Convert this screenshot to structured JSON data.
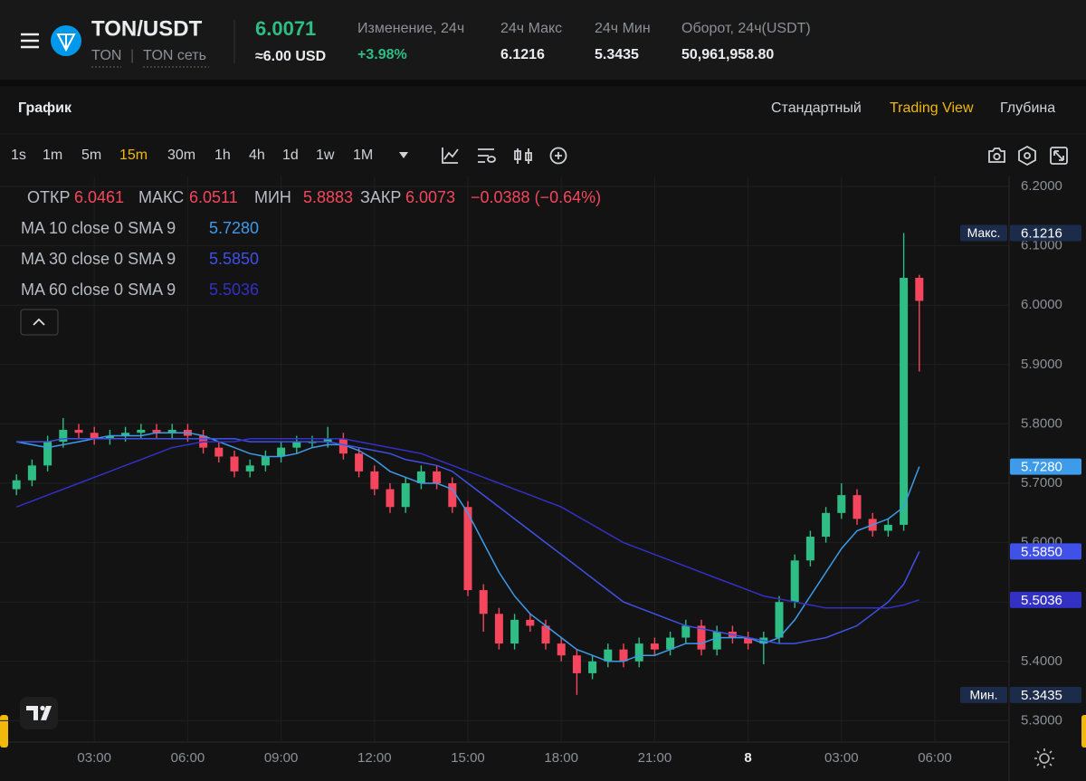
{
  "header": {
    "pair": "TON/USDT",
    "base": "TON",
    "network": "TON сеть",
    "price": "6.0071",
    "price_usd": "≈6.00 USD",
    "stats": [
      {
        "label": "Изменение, 24ч",
        "value": "+3.98%"
      },
      {
        "label": "24ч Макс",
        "value": "6.1216"
      },
      {
        "label": "24ч Мин",
        "value": "5.3435"
      },
      {
        "label": "Оборот, 24ч(USDT)",
        "value": "50,961,958.80"
      }
    ]
  },
  "tabs": {
    "title": "График",
    "views": [
      "Стандартный",
      "Trading View",
      "Глубина"
    ],
    "active_view": 1
  },
  "toolbar": {
    "intervals": [
      "1s",
      "1m",
      "5m",
      "15m",
      "30m",
      "1h",
      "4h",
      "1d",
      "1w",
      "1M"
    ],
    "active_interval": 3
  },
  "chart_data": {
    "type": "candlestick",
    "legend": {
      "items": [
        {
          "label": "ОТКР",
          "value": "6.0461"
        },
        {
          "label": "МАКС",
          "value": "6.0511"
        },
        {
          "label": "МИН",
          "value": "5.8883"
        },
        {
          "label": "ЗАКР",
          "value": "6.0073"
        }
      ],
      "change": "−0.0388 (−0.64%)"
    },
    "open": [
      5.69,
      5.705,
      5.73,
      5.77,
      5.79,
      5.785,
      5.775,
      5.78,
      5.785,
      5.79,
      5.785,
      5.79,
      5.78,
      5.76,
      5.745,
      5.72,
      5.73,
      5.745,
      5.76,
      5.77,
      5.77,
      5.775,
      5.75,
      5.72,
      5.69,
      5.66,
      5.7,
      5.72,
      5.7,
      5.66,
      5.52,
      5.48,
      5.43,
      5.47,
      5.46,
      5.43,
      5.41,
      5.38,
      5.4,
      5.42,
      5.4,
      5.43,
      5.42,
      5.44,
      5.46,
      5.42,
      5.45,
      5.44,
      5.43,
      5.44,
      5.5,
      5.57,
      5.61,
      5.65,
      5.68,
      5.64,
      5.62,
      5.63,
      6.0461
    ],
    "high": [
      5.715,
      5.74,
      5.78,
      5.81,
      5.8,
      5.795,
      5.79,
      5.795,
      5.8,
      5.8,
      5.8,
      5.8,
      5.79,
      5.77,
      5.755,
      5.74,
      5.755,
      5.77,
      5.78,
      5.78,
      5.795,
      5.785,
      5.76,
      5.73,
      5.7,
      5.71,
      5.73,
      5.73,
      5.71,
      5.67,
      5.53,
      5.49,
      5.48,
      5.48,
      5.47,
      5.44,
      5.42,
      5.41,
      5.43,
      5.43,
      5.44,
      5.44,
      5.45,
      5.47,
      5.47,
      5.46,
      5.46,
      5.45,
      5.45,
      5.51,
      5.58,
      5.62,
      5.66,
      5.7,
      5.69,
      5.65,
      5.64,
      6.1216,
      6.0511
    ],
    "low": [
      5.68,
      5.695,
      5.72,
      5.76,
      5.775,
      5.765,
      5.765,
      5.77,
      5.775,
      5.775,
      5.775,
      5.77,
      5.75,
      5.735,
      5.71,
      5.71,
      5.72,
      5.735,
      5.75,
      5.76,
      5.76,
      5.74,
      5.71,
      5.68,
      5.65,
      5.65,
      5.69,
      5.69,
      5.65,
      5.51,
      5.45,
      5.42,
      5.42,
      5.45,
      5.42,
      5.4,
      5.3435,
      5.37,
      5.39,
      5.39,
      5.39,
      5.41,
      5.41,
      5.43,
      5.41,
      5.41,
      5.43,
      5.42,
      5.395,
      5.43,
      5.49,
      5.56,
      5.6,
      5.64,
      5.63,
      5.61,
      5.61,
      5.62,
      5.8883
    ],
    "close": [
      5.705,
      5.73,
      5.77,
      5.79,
      5.785,
      5.775,
      5.78,
      5.785,
      5.79,
      5.785,
      5.79,
      5.78,
      5.76,
      5.745,
      5.72,
      5.73,
      5.745,
      5.76,
      5.77,
      5.77,
      5.775,
      5.75,
      5.72,
      5.69,
      5.66,
      5.7,
      5.72,
      5.7,
      5.66,
      5.52,
      5.48,
      5.43,
      5.47,
      5.46,
      5.43,
      5.41,
      5.38,
      5.4,
      5.42,
      5.4,
      5.43,
      5.42,
      5.44,
      5.46,
      5.42,
      5.45,
      5.44,
      5.43,
      5.44,
      5.5,
      5.57,
      5.61,
      5.65,
      5.68,
      5.64,
      5.62,
      5.63,
      6.0461,
      6.0073
    ],
    "up_color": "#2ebd85",
    "down_color": "#f6465d",
    "series": [
      {
        "name": "MA 10 close 0 SMA 9",
        "value_label": "5.7280",
        "color": "#3d9be9",
        "values": [
          5.77,
          5.765,
          5.76,
          5.765,
          5.77,
          5.775,
          5.78,
          5.78,
          5.78,
          5.785,
          5.785,
          5.785,
          5.78,
          5.77,
          5.76,
          5.75,
          5.745,
          5.745,
          5.75,
          5.76,
          5.765,
          5.765,
          5.755,
          5.74,
          5.72,
          5.71,
          5.7,
          5.7,
          5.69,
          5.65,
          5.6,
          5.55,
          5.51,
          5.48,
          5.46,
          5.44,
          5.42,
          5.41,
          5.4,
          5.4,
          5.41,
          5.41,
          5.42,
          5.43,
          5.43,
          5.44,
          5.44,
          5.44,
          5.43,
          5.44,
          5.47,
          5.51,
          5.55,
          5.59,
          5.62,
          5.63,
          5.64,
          5.66,
          5.728
        ]
      },
      {
        "name": "MA 30 close 0 SMA 9",
        "value_label": "5.5850",
        "color": "#3f51e6",
        "values": [
          5.77,
          5.77,
          5.77,
          5.775,
          5.775,
          5.775,
          5.775,
          5.775,
          5.775,
          5.775,
          5.775,
          5.775,
          5.775,
          5.775,
          5.775,
          5.77,
          5.77,
          5.77,
          5.77,
          5.77,
          5.77,
          5.765,
          5.76,
          5.755,
          5.75,
          5.74,
          5.735,
          5.73,
          5.72,
          5.7,
          5.68,
          5.66,
          5.64,
          5.62,
          5.6,
          5.58,
          5.56,
          5.54,
          5.52,
          5.5,
          5.49,
          5.48,
          5.47,
          5.46,
          5.455,
          5.45,
          5.445,
          5.44,
          5.435,
          5.43,
          5.43,
          5.435,
          5.44,
          5.45,
          5.46,
          5.48,
          5.5,
          5.53,
          5.585
        ]
      },
      {
        "name": "MA 60 close 0 SMA 9",
        "value_label": "5.5036",
        "color": "#3330c4",
        "values": [
          5.66,
          5.67,
          5.68,
          5.69,
          5.7,
          5.71,
          5.72,
          5.73,
          5.74,
          5.75,
          5.76,
          5.765,
          5.77,
          5.77,
          5.77,
          5.775,
          5.775,
          5.775,
          5.775,
          5.775,
          5.775,
          5.775,
          5.77,
          5.765,
          5.76,
          5.755,
          5.75,
          5.74,
          5.73,
          5.72,
          5.71,
          5.7,
          5.69,
          5.68,
          5.67,
          5.66,
          5.645,
          5.63,
          5.615,
          5.6,
          5.59,
          5.58,
          5.57,
          5.56,
          5.55,
          5.54,
          5.53,
          5.52,
          5.51,
          5.505,
          5.5,
          5.495,
          5.49,
          5.49,
          5.49,
          5.49,
          5.49,
          5.495,
          5.5036
        ]
      }
    ],
    "price_tags": [
      {
        "name": "Макс.",
        "value": 6.1216,
        "label": "6.1216"
      },
      {
        "value": 5.728,
        "label": "5.7280",
        "color": "#3d9be9"
      },
      {
        "value": 5.585,
        "label": "5.5850",
        "color": "#3f51e6"
      },
      {
        "value": 5.5036,
        "label": "5.5036",
        "color": "#3330c4"
      },
      {
        "name": "Мин.",
        "value": 5.3435,
        "label": "5.3435"
      }
    ],
    "ylim": [
      5.264,
      6.2168
    ],
    "yticks": [
      {
        "value": 5.3,
        "label": "5.3000"
      },
      {
        "value": 5.4,
        "label": "5.4000"
      },
      {
        "value": 5.5,
        "label": "5.5000"
      },
      {
        "value": 5.6,
        "label": "5.6000"
      },
      {
        "value": 5.7,
        "label": "5.7000"
      },
      {
        "value": 5.8,
        "label": "5.8000"
      },
      {
        "value": 5.9,
        "label": "5.9000"
      },
      {
        "value": 6.0,
        "label": "6.0000"
      },
      {
        "value": 6.1,
        "label": "6.1000"
      },
      {
        "value": 6.2,
        "label": "6.2000"
      }
    ],
    "xticks": [
      {
        "value": 5,
        "label": "03:00"
      },
      {
        "value": 11,
        "label": "06:00"
      },
      {
        "value": 17,
        "label": "09:00"
      },
      {
        "value": 23,
        "label": "12:00"
      },
      {
        "value": 29,
        "label": "15:00"
      },
      {
        "value": 35,
        "label": "18:00"
      },
      {
        "value": 41,
        "label": "21:00"
      },
      {
        "value": 47,
        "label": "8"
      },
      {
        "value": 53,
        "label": "03:00"
      },
      {
        "value": 59,
        "label": "06:00"
      }
    ],
    "grid": true
  }
}
